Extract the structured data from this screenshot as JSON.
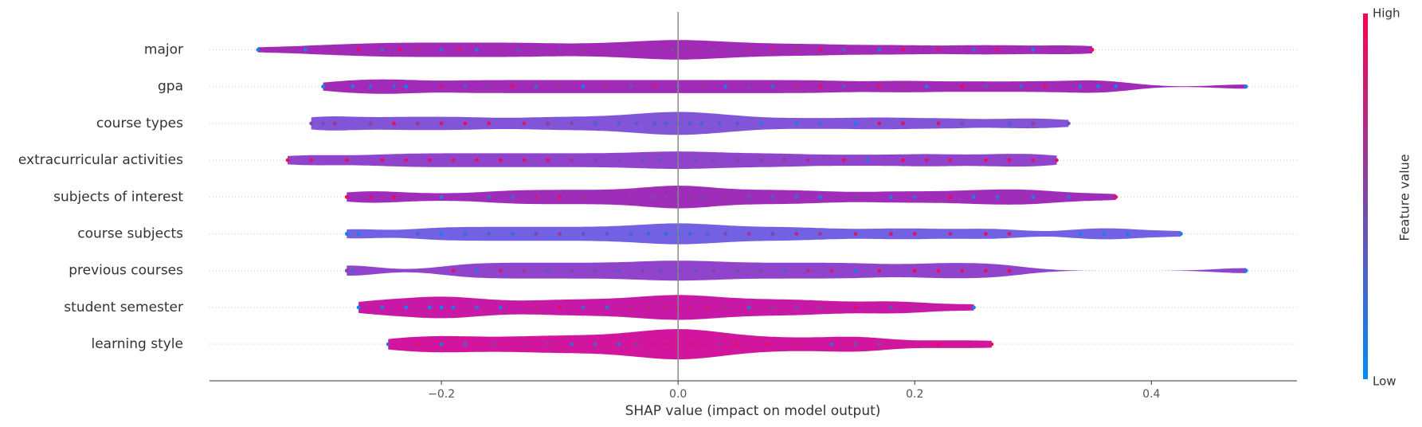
{
  "chart_data": {
    "type": "violin_summary",
    "xlabel": "SHAP value (impact on model output)",
    "xlim": [
      -0.396,
      0.523
    ],
    "xticks": [
      {
        "value": -0.2,
        "label": "−0.2"
      },
      {
        "value": 0,
        "label": "0.0"
      },
      0.2,
      0.4
    ],
    "colormap": {
      "low": "#008bfb",
      "high": "#ff0052"
    },
    "colorbar": {
      "label": "Feature value",
      "high_label": "High",
      "low_label": "Low"
    },
    "series": [
      {
        "name": "major",
        "color": "#9c1fb3",
        "values": [
          -0.355,
          -0.315,
          -0.29,
          -0.27,
          -0.25,
          -0.235,
          -0.22,
          -0.2,
          -0.185,
          -0.17,
          -0.15,
          -0.135,
          -0.12,
          -0.1,
          -0.08,
          -0.06,
          -0.045,
          -0.03,
          -0.015,
          -0.005,
          0.005,
          0.015,
          0.03,
          0.045,
          0.06,
          0.08,
          0.1,
          0.12,
          0.14,
          0.17,
          0.19,
          0.22,
          0.25,
          0.27,
          0.3,
          0.33,
          0.35
        ],
        "features": [
          0.05,
          0.1,
          0.6,
          0.9,
          0.3,
          0.95,
          0.7,
          0.2,
          0.85,
          0.15,
          0.6,
          0.4,
          0.55,
          0.5,
          0.6,
          0.55,
          0.5,
          0.6,
          0.55,
          0.5,
          0.55,
          0.6,
          0.5,
          0.55,
          0.7,
          0.8,
          0.65,
          0.9,
          0.3,
          0.1,
          0.95,
          0.85,
          0.2,
          0.9,
          0.1,
          0.6,
          0.95
        ]
      },
      {
        "name": "gpa",
        "color": "#9c1fb3",
        "values": [
          -0.3,
          -0.275,
          -0.26,
          -0.24,
          -0.23,
          -0.2,
          -0.18,
          -0.16,
          -0.14,
          -0.12,
          -0.1,
          -0.08,
          -0.06,
          -0.04,
          -0.02,
          0,
          0.02,
          0.04,
          0.06,
          0.08,
          0.1,
          0.12,
          0.14,
          0.17,
          0.19,
          0.21,
          0.24,
          0.26,
          0.29,
          0.31,
          0.34,
          0.355,
          0.37,
          0.48
        ],
        "features": [
          0.05,
          0.1,
          0.15,
          0.2,
          0.05,
          0.8,
          0.3,
          0.5,
          0.9,
          0.2,
          0.6,
          0.1,
          0.7,
          0.4,
          0.8,
          0.3,
          0.6,
          0.1,
          0.5,
          0.2,
          0.7,
          0.9,
          0.3,
          0.85,
          0.6,
          0.1,
          0.95,
          0.4,
          0.2,
          0.9,
          0.15,
          0.1,
          0.05,
          0.05
        ]
      },
      {
        "name": "course types",
        "color": "#7a4bd6",
        "values": [
          -0.31,
          -0.3,
          -0.29,
          -0.26,
          -0.24,
          -0.22,
          -0.2,
          -0.18,
          -0.16,
          -0.13,
          -0.11,
          -0.09,
          -0.07,
          -0.05,
          -0.035,
          -0.02,
          -0.01,
          0,
          0.01,
          0.02,
          0.035,
          0.05,
          0.07,
          0.1,
          0.12,
          0.15,
          0.17,
          0.19,
          0.22,
          0.24,
          0.28,
          0.3,
          0.33
        ],
        "features": [
          0.5,
          0.4,
          0.6,
          0.55,
          0.9,
          0.6,
          0.85,
          0.95,
          0.9,
          0.8,
          0.6,
          0.5,
          0.3,
          0.3,
          0.35,
          0.3,
          0.25,
          0.3,
          0.3,
          0.25,
          0.3,
          0.35,
          0.1,
          0.1,
          0.2,
          0.05,
          0.9,
          0.85,
          0.9,
          0.5,
          0.3,
          0.6,
          0.4
        ]
      },
      {
        "name": "extracurricular activities",
        "color": "#8a3ac8",
        "values": [
          -0.33,
          -0.31,
          -0.28,
          -0.25,
          -0.23,
          -0.21,
          -0.19,
          -0.17,
          -0.15,
          -0.13,
          -0.11,
          -0.09,
          -0.07,
          -0.05,
          -0.03,
          -0.015,
          0,
          0.015,
          0.03,
          0.05,
          0.07,
          0.09,
          0.11,
          0.14,
          0.16,
          0.19,
          0.21,
          0.23,
          0.26,
          0.28,
          0.3,
          0.32
        ],
        "features": [
          0.95,
          0.9,
          0.9,
          0.95,
          0.85,
          0.9,
          0.8,
          0.9,
          0.95,
          0.85,
          0.9,
          0.6,
          0.5,
          0.45,
          0.4,
          0.4,
          0.45,
          0.4,
          0.45,
          0.5,
          0.55,
          0.6,
          0.7,
          0.9,
          0.1,
          0.95,
          0.85,
          0.9,
          0.9,
          0.95,
          0.85,
          0.9
        ]
      },
      {
        "name": "subjects of interest",
        "color": "#9a22b6",
        "values": [
          -0.28,
          -0.26,
          -0.24,
          -0.2,
          -0.16,
          -0.14,
          -0.12,
          -0.1,
          -0.08,
          -0.06,
          -0.04,
          -0.02,
          -0.01,
          0,
          0.01,
          0.02,
          0.04,
          0.06,
          0.08,
          0.1,
          0.12,
          0.15,
          0.18,
          0.2,
          0.23,
          0.25,
          0.27,
          0.29,
          0.3,
          0.33,
          0.37
        ],
        "features": [
          0.95,
          0.9,
          0.95,
          0.1,
          0.3,
          0.2,
          0.8,
          0.9,
          0.6,
          0.55,
          0.55,
          0.5,
          0.55,
          0.5,
          0.55,
          0.5,
          0.6,
          0.4,
          0.3,
          0.2,
          0.1,
          0.5,
          0.1,
          0.2,
          0.9,
          0.1,
          0.15,
          0.6,
          0.1,
          0.2,
          0.95
        ]
      },
      {
        "name": "course subjects",
        "color": "#6a58e0",
        "values": [
          -0.28,
          -0.27,
          -0.22,
          -0.2,
          -0.18,
          -0.16,
          -0.14,
          -0.12,
          -0.1,
          -0.08,
          -0.06,
          -0.04,
          -0.025,
          -0.01,
          0,
          0.01,
          0.025,
          0.04,
          0.06,
          0.08,
          0.1,
          0.12,
          0.15,
          0.18,
          0.2,
          0.23,
          0.26,
          0.28,
          0.34,
          0.36,
          0.38,
          0.425
        ],
        "features": [
          0.1,
          0.1,
          0.3,
          0.1,
          0.2,
          0.3,
          0.2,
          0.5,
          0.6,
          0.4,
          0.3,
          0.3,
          0.25,
          0.2,
          0.2,
          0.25,
          0.3,
          0.5,
          0.6,
          0.5,
          0.7,
          0.6,
          0.8,
          0.85,
          0.9,
          0.8,
          0.95,
          0.9,
          0.1,
          0.1,
          0.1,
          0.1
        ]
      },
      {
        "name": "previous courses",
        "color": "#8a3ac8",
        "values": [
          -0.28,
          -0.275,
          -0.19,
          -0.17,
          -0.15,
          -0.13,
          -0.11,
          -0.09,
          -0.07,
          -0.05,
          -0.03,
          -0.015,
          0,
          0.015,
          0.03,
          0.05,
          0.07,
          0.09,
          0.11,
          0.13,
          0.15,
          0.17,
          0.2,
          0.22,
          0.24,
          0.26,
          0.28,
          0.48
        ],
        "features": [
          0.5,
          0.3,
          0.9,
          0.1,
          0.8,
          0.6,
          0.4,
          0.5,
          0.45,
          0.4,
          0.45,
          0.4,
          0.45,
          0.4,
          0.5,
          0.45,
          0.5,
          0.3,
          0.7,
          0.8,
          0.1,
          0.9,
          0.95,
          0.9,
          0.85,
          0.9,
          0.95,
          0.1
        ]
      },
      {
        "name": "student semester",
        "color": "#c40da0",
        "values": [
          -0.27,
          -0.25,
          -0.23,
          -0.21,
          -0.2,
          -0.19,
          -0.17,
          -0.15,
          -0.12,
          -0.1,
          -0.08,
          -0.06,
          -0.04,
          -0.025,
          -0.01,
          0,
          0.01,
          0.025,
          0.04,
          0.06,
          0.08,
          0.1,
          0.12,
          0.15,
          0.18,
          0.2,
          0.25
        ],
        "features": [
          0.05,
          0.1,
          0.05,
          0.05,
          0.05,
          0.1,
          0.2,
          0.15,
          0.8,
          0.9,
          0.3,
          0.2,
          0.7,
          0.75,
          0.8,
          0.8,
          0.75,
          0.8,
          0.7,
          0.2,
          0.6,
          0.5,
          0.6,
          0.9,
          0.4,
          0.6,
          0.1
        ]
      },
      {
        "name": "learning style",
        "color": "#d00898",
        "values": [
          -0.245,
          -0.22,
          -0.2,
          -0.18,
          -0.155,
          -0.13,
          -0.11,
          -0.09,
          -0.07,
          -0.05,
          -0.035,
          -0.02,
          -0.01,
          0,
          0.01,
          0.02,
          0.035,
          0.05,
          0.075,
          0.1,
          0.13,
          0.15,
          0.17,
          0.22,
          0.265
        ],
        "features": [
          0.3,
          0.9,
          0.1,
          0.3,
          0.5,
          0.7,
          0.6,
          0.2,
          0.3,
          0.2,
          0.5,
          0.8,
          0.85,
          0.85,
          0.8,
          0.8,
          0.6,
          0.9,
          0.9,
          0.8,
          0.2,
          0.4,
          0.5,
          0.95,
          0.95
        ]
      }
    ]
  }
}
